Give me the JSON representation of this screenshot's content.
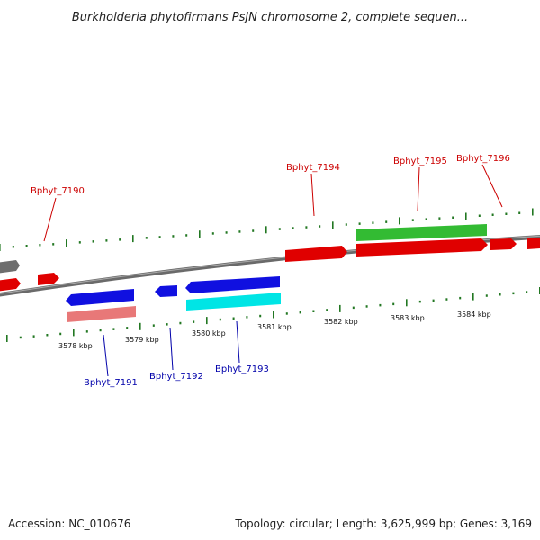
{
  "title": "Burkholderia phytofirmans PsJN chromosome 2, complete sequen...",
  "accession": "Accession: NC_010676",
  "topology": "Topology: circular; Length: 3,625,999 bp; Genes: 3,169",
  "kbp_labels": [
    "3578 kbp",
    "3579 kbp",
    "3580 kbp",
    "3581 kbp",
    "3582 kbp",
    "3583 kbp",
    "3584 kbp"
  ],
  "gene_labels": {
    "top": [
      "Bphyt_7190",
      "Bphyt_7194",
      "Bphyt_7195",
      "Bphyt_7196"
    ],
    "bottom": [
      "Bphyt_7191",
      "Bphyt_7192",
      "Bphyt_7193"
    ]
  },
  "colors": {
    "red": "#e00000",
    "blue": "#1010e0",
    "green": "#33bb33",
    "cyan": "#00e5e5",
    "pink": "#e87878",
    "gray": "#6e6e6e",
    "label_top": "#cc0000",
    "label_bottom": "#0000aa",
    "tick": "#227722"
  }
}
